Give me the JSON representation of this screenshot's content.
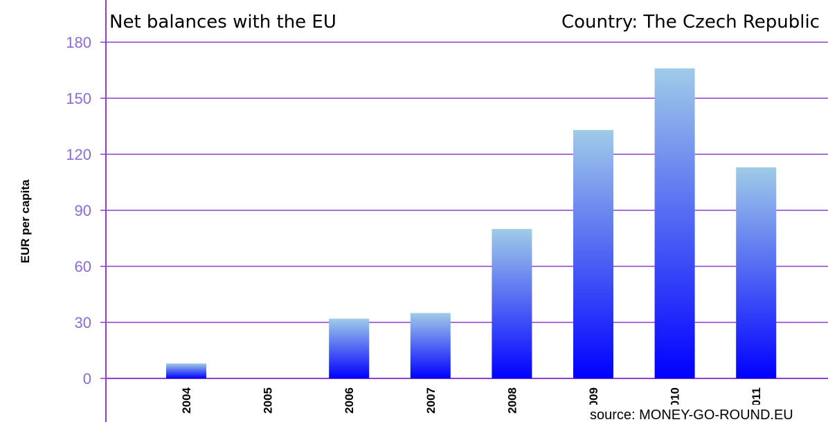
{
  "chart_data": {
    "type": "bar",
    "title": "Net balances with the EU",
    "subtitle": "Country: The Czech Republic",
    "ylabel": "EUR per capita",
    "xlabel": "",
    "categories": [
      "2004",
      "2005",
      "2006",
      "2007",
      "2008",
      "2009",
      "2010",
      "2011"
    ],
    "values": [
      8,
      0,
      32,
      35,
      80,
      133,
      166,
      113
    ],
    "ylim": [
      0,
      180
    ],
    "yticks": [
      "0",
      "30",
      "60",
      "90",
      "120",
      "150",
      "180"
    ],
    "grid": true,
    "legend": "none",
    "source": "source: MONEY-GO-ROUND.EU",
    "colors": {
      "bar_top": "#a0cbe8",
      "bar_bottom": "#0000ff",
      "grid": "#8a3fd1",
      "tick_text": "#8a6ad8"
    }
  }
}
